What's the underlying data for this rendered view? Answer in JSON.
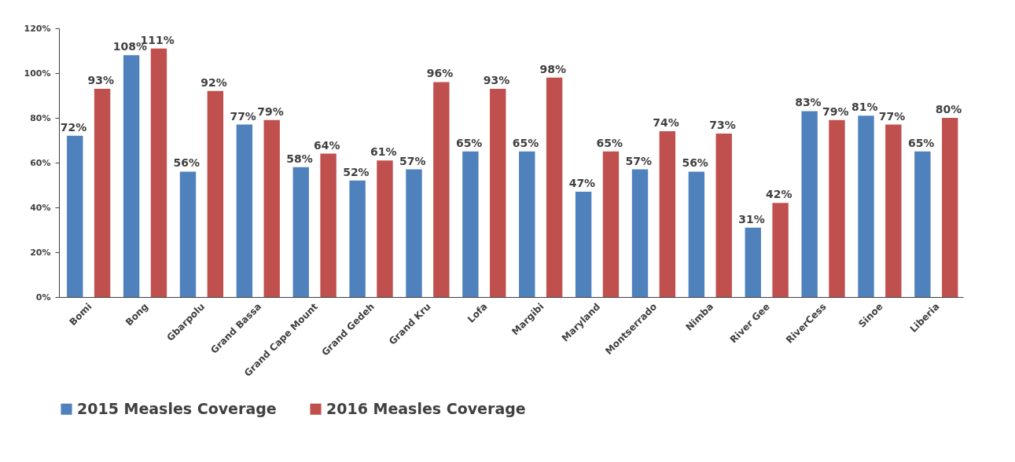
{
  "chart_data": {
    "type": "bar",
    "categories": [
      "Bomi",
      "Bong",
      "Gbarpolu",
      "Grand Bassa",
      "Grand Cape Mount",
      "Grand Gedeh",
      "Grand Kru",
      "Lofa",
      "Margibi",
      "Maryland",
      "Montserrado",
      "Nimba",
      "River Gee",
      "RiverCess",
      "Sinoe",
      "Liberia"
    ],
    "series": [
      {
        "name": "2015 Measles Coverage",
        "color": "#4f81bd",
        "values": [
          72,
          108,
          56,
          77,
          58,
          52,
          57,
          65,
          65,
          47,
          57,
          56,
          31,
          83,
          81,
          65
        ],
        "value_labels": [
          "72%",
          "108%",
          "56%",
          "77%",
          "58%",
          "52%",
          "57%",
          "65%",
          "65%",
          "47%",
          "57%",
          "56%",
          "31%",
          "83%",
          "81%",
          "65%"
        ]
      },
      {
        "name": "2016 Measles Coverage",
        "color": "#c0504d",
        "values": [
          93,
          111,
          92,
          79,
          64,
          61,
          96,
          93,
          98,
          65,
          74,
          73,
          42,
          79,
          77,
          80
        ],
        "value_labels": [
          "93%",
          "111%",
          "92%",
          "79%",
          "64%",
          "61%",
          "96%",
          "93%",
          "98%",
          "65%",
          "74%",
          "73%",
          "42%",
          "79%",
          "77%",
          "80%"
        ]
      }
    ],
    "ylim": [
      0,
      120
    ],
    "yticks": [
      {
        "value": 0,
        "label": "0%"
      },
      {
        "value": 20,
        "label": "20%"
      },
      {
        "value": 40,
        "label": "40%"
      },
      {
        "value": 60,
        "label": "60%"
      },
      {
        "value": 80,
        "label": "80%"
      },
      {
        "value": 100,
        "label": "100%"
      },
      {
        "value": 120,
        "label": "120%"
      }
    ],
    "grid": false,
    "legend": "bottom"
  }
}
